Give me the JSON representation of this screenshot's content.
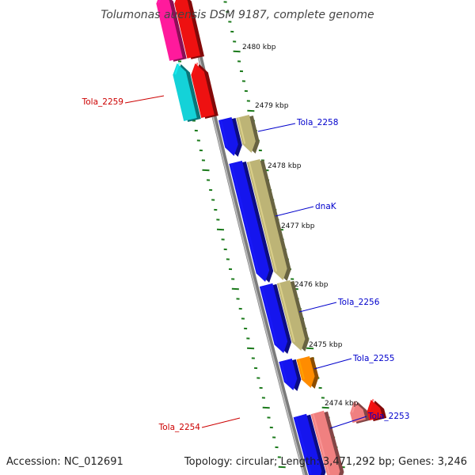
{
  "title": "Tolumonas auensis DSM 9187, complete genome",
  "footer": {
    "accession": "Accession: NC_012691",
    "summary": "Topology: circular; Length: 3,471,292 bp; Genes: 3,246"
  },
  "colors": {
    "backbone": "#7a7a7a",
    "tick": "#1b7a1b",
    "label_blue": "#0000cc",
    "label_red": "#cc0000"
  },
  "scale_labels": [
    "2480 kbp",
    "2479 kbp",
    "2478 kbp",
    "2477 kbp",
    "2476 kbp",
    "2475 kbp",
    "2474 kbp"
  ],
  "gene_labels": [
    {
      "text": "Tola_2259",
      "strand": "reverse"
    },
    {
      "text": "Tola_2258",
      "strand": "forward"
    },
    {
      "text": "dnaK",
      "strand": "forward"
    },
    {
      "text": "Tola_2256",
      "strand": "forward"
    },
    {
      "text": "Tola_2255",
      "strand": "forward"
    },
    {
      "text": "Tola_2254",
      "strand": "reverse"
    },
    {
      "text": "Tola_2253",
      "strand": "forward"
    }
  ],
  "features": [
    {
      "kind": "gene",
      "strand": "reverse",
      "track": "outer",
      "color": "#ff1a9c"
    },
    {
      "kind": "gene",
      "strand": "reverse",
      "track": "inner",
      "color": "#ee1111"
    },
    {
      "kind": "gene",
      "strand": "reverse",
      "track": "outer",
      "color": "#14d2d8"
    },
    {
      "kind": "gene",
      "strand": "reverse",
      "track": "inner",
      "color": "#ee1111"
    },
    {
      "kind": "gene",
      "strand": "forward",
      "track": "inner",
      "color": "#1515ee"
    },
    {
      "kind": "gene",
      "strand": "forward",
      "track": "outer",
      "color": "#bdb476"
    },
    {
      "kind": "gene",
      "strand": "forward",
      "track": "inner",
      "color": "#1515ee"
    },
    {
      "kind": "gene",
      "strand": "forward",
      "track": "outer",
      "color": "#bdb476"
    },
    {
      "kind": "gene",
      "strand": "forward",
      "track": "inner",
      "color": "#1515ee"
    },
    {
      "kind": "gene",
      "strand": "forward",
      "track": "outer",
      "color": "#bdb476"
    },
    {
      "kind": "gene",
      "strand": "forward",
      "track": "inner",
      "color": "#1515ee"
    },
    {
      "kind": "gene",
      "strand": "forward",
      "track": "outer",
      "color": "#ff8c00"
    },
    {
      "kind": "gene",
      "strand": "reverse",
      "track": "outer",
      "color": "#f08080"
    },
    {
      "kind": "gene",
      "strand": "reverse",
      "track": "inner",
      "color": "#ee1111"
    },
    {
      "kind": "gene",
      "strand": "forward",
      "track": "inner",
      "color": "#1515ee"
    },
    {
      "kind": "gene",
      "strand": "forward",
      "track": "outer",
      "color": "#f08080"
    }
  ]
}
